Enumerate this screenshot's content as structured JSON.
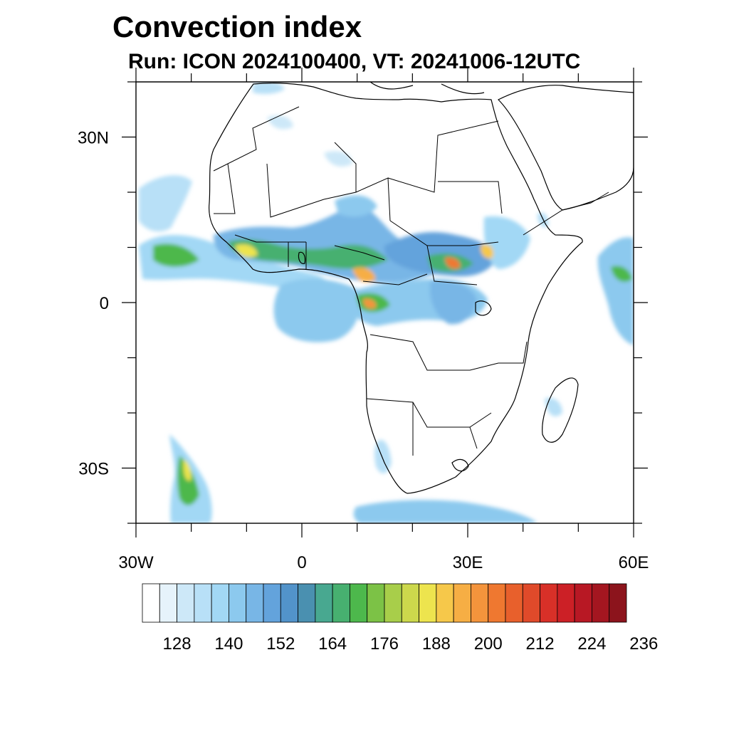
{
  "title": "Convection index",
  "subtitle": "Run: ICON 2024100400,  VT: 20241006-12UTC",
  "map": {
    "lon_range": [
      -30,
      60
    ],
    "lat_range": [
      -40,
      40
    ],
    "y_ticks": [
      {
        "lat": 30,
        "label": "30N"
      },
      {
        "lat": 0,
        "label": "0"
      },
      {
        "lat": -30,
        "label": "30S"
      }
    ],
    "x_ticks": [
      {
        "lon": -30,
        "label": "30W"
      },
      {
        "lon": 0,
        "label": "0"
      },
      {
        "lon": 30,
        "label": "30E"
      },
      {
        "lon": 60,
        "label": "60E"
      }
    ],
    "minor_lon_step": 10,
    "minor_lat_step": 10
  },
  "colorbar": {
    "labels": [
      "128",
      "140",
      "152",
      "164",
      "176",
      "188",
      "200",
      "212",
      "224",
      "236"
    ],
    "label_start_index": 2,
    "label_step": 3,
    "colors": [
      "#ffffff",
      "#e6f3fb",
      "#cde8f8",
      "#b8e0f7",
      "#a2d8f5",
      "#8cc9ee",
      "#78b6e6",
      "#63a3dc",
      "#5293ca",
      "#4a90b0",
      "#48a890",
      "#47b070",
      "#4db84c",
      "#7cc246",
      "#a8ce4a",
      "#ccd84c",
      "#ede44e",
      "#f6c84a",
      "#f6ae44",
      "#f4943c",
      "#ef7830",
      "#e8602c",
      "#e04a2a",
      "#d83028",
      "#cc2026",
      "#b81824",
      "#a41620",
      "#8c141c"
    ]
  }
}
